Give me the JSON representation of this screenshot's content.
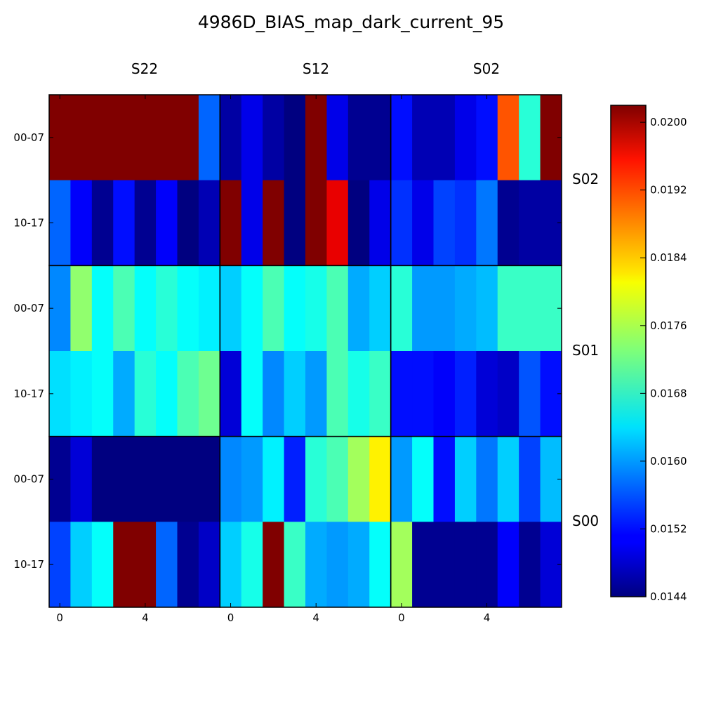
{
  "chart_data": {
    "type": "heatmap",
    "title": "4986D_BIAS_map_dark_current_95",
    "colormap": "jet",
    "vmin": 0.0144,
    "vmax": 0.0202,
    "column_groups": [
      "S22",
      "S12",
      "S02"
    ],
    "row_groups": [
      "S02",
      "S01",
      "S00"
    ],
    "row_tick_labels": [
      "00-07",
      "10-17",
      "00-07",
      "10-17",
      "00-07",
      "10-17"
    ],
    "x_tick_labels": [
      "0",
      "4"
    ],
    "x_tick_indices": [
      0,
      4
    ],
    "colorbar_ticks": [
      0.0144,
      0.0152,
      0.016,
      0.0168,
      0.0176,
      0.0184,
      0.0192,
      0.02
    ],
    "colorbar_tick_labels": [
      "0.0144",
      "0.0152",
      "0.0160",
      "0.0168",
      "0.0176",
      "0.0184",
      "0.0192",
      "0.0200"
    ],
    "grid": [
      [
        0.0202,
        0.0202,
        0.0202,
        0.0202,
        0.0202,
        0.0202,
        0.0202,
        0.0157,
        0.0146,
        0.015,
        0.0146,
        0.0144,
        0.0202,
        0.015,
        0.0145,
        0.0145,
        0.0152,
        0.0147,
        0.0147,
        0.015,
        0.0152,
        0.019,
        0.0168,
        0.0202
      ],
      [
        0.0157,
        0.0151,
        0.0145,
        0.0152,
        0.0145,
        0.0151,
        0.0144,
        0.0147,
        0.0202,
        0.015,
        0.0202,
        0.0144,
        0.0202,
        0.0196,
        0.0144,
        0.015,
        0.0154,
        0.015,
        0.0155,
        0.0154,
        0.0158,
        0.0145,
        0.0146,
        0.0146
      ],
      [
        0.0159,
        0.0174,
        0.0166,
        0.017,
        0.0166,
        0.0168,
        0.0166,
        0.0165,
        0.0163,
        0.0166,
        0.017,
        0.0166,
        0.0167,
        0.017,
        0.0161,
        0.0163,
        0.0168,
        0.016,
        0.016,
        0.0161,
        0.0162,
        0.0169,
        0.0169,
        0.0169
      ],
      [
        0.0164,
        0.0165,
        0.0166,
        0.0161,
        0.0168,
        0.0166,
        0.017,
        0.0172,
        0.0149,
        0.0166,
        0.0159,
        0.0163,
        0.016,
        0.017,
        0.0167,
        0.0169,
        0.0152,
        0.0152,
        0.0151,
        0.0153,
        0.0149,
        0.0148,
        0.0156,
        0.0152
      ],
      [
        0.0145,
        0.0149,
        0.0144,
        0.0144,
        0.0144,
        0.0144,
        0.0144,
        0.0144,
        0.0159,
        0.016,
        0.0165,
        0.0153,
        0.0168,
        0.017,
        0.0175,
        0.0181,
        0.016,
        0.0166,
        0.0152,
        0.0163,
        0.0158,
        0.0163,
        0.0155,
        0.0162
      ],
      [
        0.0155,
        0.0163,
        0.0166,
        0.0202,
        0.0202,
        0.0157,
        0.0145,
        0.0148,
        0.0163,
        0.0167,
        0.0202,
        0.0169,
        0.0161,
        0.016,
        0.0161,
        0.0166,
        0.0175,
        0.0145,
        0.0145,
        0.0145,
        0.0145,
        0.0151,
        0.0145,
        0.0149
      ]
    ]
  }
}
